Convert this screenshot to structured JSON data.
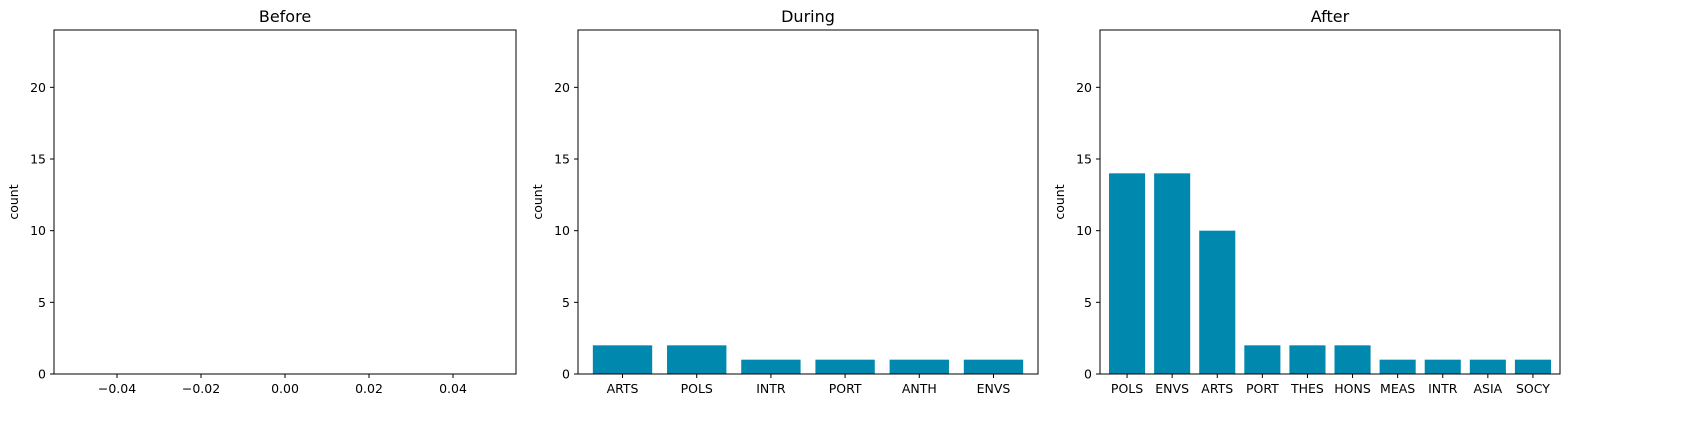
{
  "chart_data": [
    {
      "type": "bar",
      "title": "Before",
      "ylabel": "count",
      "ylim": [
        0,
        24
      ],
      "yticks": [
        0,
        5,
        10,
        15,
        20
      ],
      "xlim": [
        -0.055,
        0.055
      ],
      "xticks": [
        -0.04,
        -0.02,
        0.0,
        0.02,
        0.04
      ],
      "xtick_labels": [
        "−0.04",
        "−0.02",
        "0.00",
        "0.02",
        "0.04"
      ],
      "categories": [],
      "values": [],
      "color": "#0088AE"
    },
    {
      "type": "bar",
      "title": "During",
      "ylabel": "count",
      "ylim": [
        0,
        24
      ],
      "yticks": [
        0,
        5,
        10,
        15,
        20
      ],
      "categories": [
        "ARTS",
        "POLS",
        "INTR",
        "PORT",
        "ANTH",
        "ENVS"
      ],
      "values": [
        2,
        2,
        1,
        1,
        1,
        1
      ],
      "color": "#0088AE"
    },
    {
      "type": "bar",
      "title": "After",
      "ylabel": "count",
      "ylim": [
        0,
        24
      ],
      "yticks": [
        0,
        5,
        10,
        15,
        20
      ],
      "categories": [
        "POLS",
        "ENVS",
        "ARTS",
        "PORT",
        "THES",
        "HONS",
        "MEAS",
        "INTR",
        "ASIA",
        "SOCY"
      ],
      "values": [
        14,
        14,
        10,
        2,
        2,
        2,
        1,
        1,
        1,
        1
      ],
      "color": "#0088AE"
    }
  ]
}
